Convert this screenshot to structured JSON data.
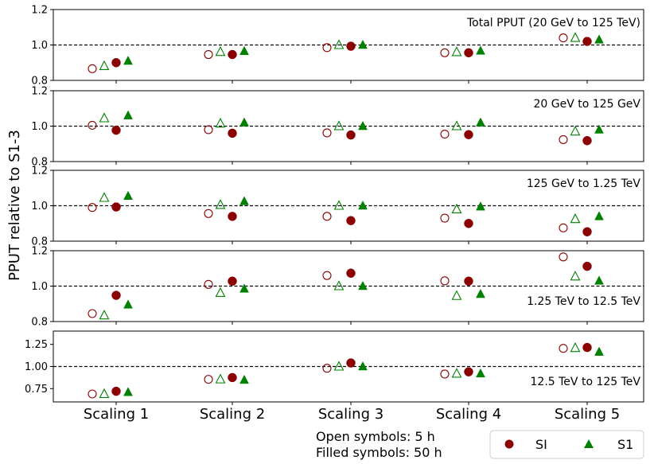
{
  "chart_data": {
    "type": "scatter",
    "ylabel": "PPUT relative to S1-3",
    "categories": [
      "Scaling 1",
      "Scaling 2",
      "Scaling 3",
      "Scaling 4",
      "Scaling 5"
    ],
    "reference_line": 1.0,
    "legend": [
      {
        "name": "SI",
        "marker": "circle",
        "color": "#8b0000"
      },
      {
        "name": "S1",
        "marker": "triangle",
        "color": "#008000"
      }
    ],
    "notes": [
      "Open symbols: 5 h",
      "Filled symbols: 50 h"
    ],
    "panels": [
      {
        "title": "Total PPUT (20 GeV to 125 TeV)",
        "title_align": "right-top",
        "ylim": [
          0.8,
          1.2
        ],
        "yticks": [
          0.8,
          1.0,
          1.2
        ],
        "ytick_labels": [
          "0.8",
          "1.0",
          "1.2"
        ],
        "series": [
          {
            "name": "SI",
            "time": "5 h",
            "filled": false,
            "values": [
              0.866,
              0.946,
              0.985,
              0.956,
              1.04
            ]
          },
          {
            "name": "S1",
            "time": "5 h",
            "filled": false,
            "values": [
              0.881,
              0.961,
              1.0,
              0.96,
              1.04
            ]
          },
          {
            "name": "SI",
            "time": "50 h",
            "filled": true,
            "values": [
              0.9,
              0.946,
              0.993,
              0.956,
              1.02
            ]
          },
          {
            "name": "S1",
            "time": "50 h",
            "filled": true,
            "values": [
              0.91,
              0.965,
              1.0,
              0.967,
              1.03
            ]
          }
        ]
      },
      {
        "title": "20 GeV to 125 GeV",
        "title_align": "right-top",
        "ylim": [
          0.8,
          1.2
        ],
        "yticks": [
          0.8,
          1.0,
          1.2
        ],
        "ytick_labels": [
          "0.8",
          "1.0",
          "1.2"
        ],
        "series": [
          {
            "name": "SI",
            "time": "5 h",
            "filled": false,
            "values": [
              1.005,
              0.98,
              0.962,
              0.955,
              0.924
            ]
          },
          {
            "name": "S1",
            "time": "5 h",
            "filled": false,
            "values": [
              1.045,
              1.015,
              1.0,
              1.0,
              0.97
            ]
          },
          {
            "name": "SI",
            "time": "50 h",
            "filled": true,
            "values": [
              0.977,
              0.96,
              0.95,
              0.952,
              0.918
            ]
          },
          {
            "name": "S1",
            "time": "50 h",
            "filled": true,
            "values": [
              1.06,
              1.02,
              1.0,
              1.02,
              0.98
            ]
          }
        ]
      },
      {
        "title": "125 GeV to 1.25 TeV",
        "title_align": "right-top",
        "ylim": [
          0.8,
          1.2
        ],
        "yticks": [
          0.8,
          1.0,
          1.2
        ],
        "ytick_labels": [
          "0.8",
          "1.0",
          "1.2"
        ],
        "series": [
          {
            "name": "SI",
            "time": "5 h",
            "filled": false,
            "values": [
              0.99,
              0.956,
              0.94,
              0.93,
              0.875
            ]
          },
          {
            "name": "S1",
            "time": "5 h",
            "filled": false,
            "values": [
              1.045,
              1.005,
              1.0,
              0.98,
              0.925
            ]
          },
          {
            "name": "SI",
            "time": "50 h",
            "filled": true,
            "values": [
              0.993,
              0.94,
              0.916,
              0.9,
              0.853
            ]
          },
          {
            "name": "S1",
            "time": "50 h",
            "filled": true,
            "values": [
              1.055,
              1.025,
              1.0,
              0.995,
              0.94
            ]
          }
        ]
      },
      {
        "title": "1.25 TeV to 12.5 TeV",
        "title_align": "right-bottom",
        "ylim": [
          0.8,
          1.2
        ],
        "yticks": [
          0.8,
          1.0,
          1.2
        ],
        "ytick_labels": [
          "0.8",
          "1.0",
          "1.2"
        ],
        "series": [
          {
            "name": "SI",
            "time": "5 h",
            "filled": false,
            "values": [
              0.845,
              1.01,
              1.06,
              1.03,
              1.165
            ]
          },
          {
            "name": "S1",
            "time": "5 h",
            "filled": false,
            "values": [
              0.835,
              0.962,
              1.0,
              0.945,
              1.055
            ]
          },
          {
            "name": "SI",
            "time": "50 h",
            "filled": true,
            "values": [
              0.948,
              1.028,
              1.073,
              1.028,
              1.112
            ]
          },
          {
            "name": "S1",
            "time": "50 h",
            "filled": true,
            "values": [
              0.895,
              0.985,
              1.0,
              0.955,
              1.03
            ]
          }
        ]
      },
      {
        "title": "12.5 TeV to 125 TeV",
        "title_align": "right-bottom",
        "ylim": [
          0.6,
          1.4
        ],
        "yticks": [
          0.75,
          1.0,
          1.25
        ],
        "ytick_labels": [
          "0.75",
          "1.00",
          "1.25"
        ],
        "series": [
          {
            "name": "SI",
            "time": "5 h",
            "filled": false,
            "values": [
              0.69,
              0.855,
              0.98,
              0.915,
              1.205
            ]
          },
          {
            "name": "S1",
            "time": "5 h",
            "filled": false,
            "values": [
              0.69,
              0.855,
              1.0,
              0.92,
              1.21
            ]
          },
          {
            "name": "SI",
            "time": "50 h",
            "filled": true,
            "values": [
              0.72,
              0.875,
              1.04,
              0.94,
              1.215
            ]
          },
          {
            "name": "S1",
            "time": "50 h",
            "filled": true,
            "values": [
              0.71,
              0.848,
              1.0,
              0.92,
              1.165
            ]
          }
        ]
      }
    ]
  }
}
